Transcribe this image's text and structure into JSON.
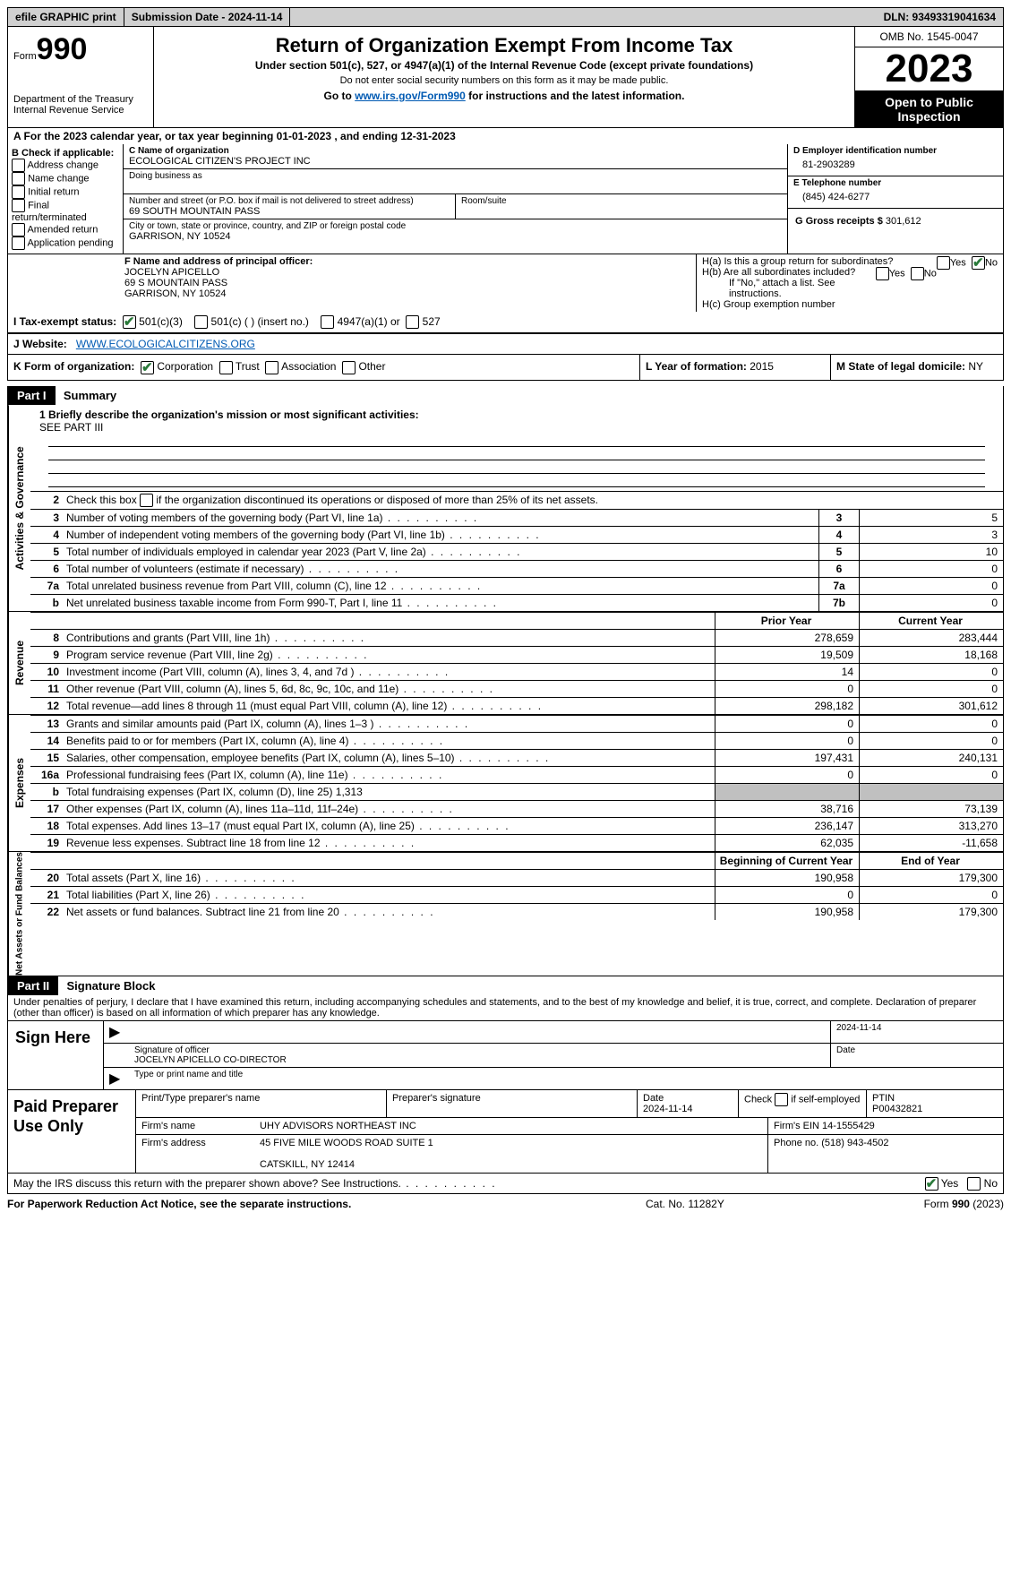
{
  "topbar": {
    "efile": "efile GRAPHIC print",
    "submission": "Submission Date - 2024-11-14",
    "dln": "DLN: 93493319041634"
  },
  "header": {
    "form_label": "Form",
    "form_number": "990",
    "dept": "Department of the Treasury",
    "irs": "Internal Revenue Service",
    "title": "Return of Organization Exempt From Income Tax",
    "subtitle": "Under section 501(c), 527, or 4947(a)(1) of the Internal Revenue Code (except private foundations)",
    "note1": "Do not enter social security numbers on this form as it may be made public.",
    "goto_prefix": "Go to ",
    "goto_link": "www.irs.gov/Form990",
    "goto_suffix": " for instructions and the latest information.",
    "omb": "OMB No. 1545-0047",
    "year": "2023",
    "open_public": "Open to Public Inspection"
  },
  "lineA": "A For the 2023 calendar year, or tax year beginning 01-01-2023    , and ending 12-31-2023",
  "B": {
    "label": "B Check if applicable:",
    "items": [
      "Address change",
      "Name change",
      "Initial return",
      "Final return/terminated",
      "Amended return",
      "Application pending"
    ]
  },
  "C": {
    "name_label": "C Name of organization",
    "name": "ECOLOGICAL CITIZEN'S PROJECT INC",
    "dba_label": "Doing business as",
    "street_label": "Number and street (or P.O. box if mail is not delivered to street address)",
    "street": "69 SOUTH MOUNTAIN PASS",
    "room_label": "Room/suite",
    "city_label": "City or town, state or province, country, and ZIP or foreign postal code",
    "city": "GARRISON, NY  10524"
  },
  "D": {
    "label": "D Employer identification number",
    "value": "81-2903289"
  },
  "E": {
    "label": "E Telephone number",
    "value": "(845) 424-6277"
  },
  "G": {
    "label": "G Gross receipts $ ",
    "value": "301,612"
  },
  "F": {
    "label": "F  Name and address of principal officer:",
    "name": "JOCELYN APICELLO",
    "addr1": "69 S MOUNTAIN PASS",
    "addr2": "GARRISON, NY  10524"
  },
  "H": {
    "a_label": "H(a)  Is this a group return for subordinates?",
    "a_no_checked": true,
    "b_label": "H(b)  Are all subordinates included?",
    "b_note": "If \"No,\" attach a list. See instructions.",
    "c_label": "H(c)  Group exemption number ",
    "yes": "Yes",
    "no": "No"
  },
  "I": {
    "label": "I    Tax-exempt status:",
    "opt1": "501(c)(3)",
    "opt2": "501(c) (  ) (insert no.)",
    "opt3": "4947(a)(1) or",
    "opt4": "527"
  },
  "J": {
    "label": "J    Website: ",
    "value": "WWW.ECOLOGICALCITIZENS.ORG"
  },
  "K": {
    "label": "K Form of organization:",
    "corp": "Corporation",
    "trust": "Trust",
    "assoc": "Association",
    "other": "Other"
  },
  "L": {
    "label": "L Year of formation: ",
    "value": "2015"
  },
  "M": {
    "label": "M State of legal domicile: ",
    "value": "NY"
  },
  "part1": {
    "header": "Part I",
    "title": "Summary"
  },
  "summary": {
    "briefly_label": "1   Briefly describe the organization's mission or most significant activities:",
    "briefly_value": "SEE PART III",
    "line2": "Check this box        if the organization discontinued its operations or disposed of more than 25% of its net assets.",
    "governance_label": "Activities & Governance",
    "gov_rows": [
      {
        "n": "3",
        "text": "Number of voting members of the governing body (Part VI, line 1a)",
        "box": "3",
        "val": "5"
      },
      {
        "n": "4",
        "text": "Number of independent voting members of the governing body (Part VI, line 1b)",
        "box": "4",
        "val": "3"
      },
      {
        "n": "5",
        "text": "Total number of individuals employed in calendar year 2023 (Part V, line 2a)",
        "box": "5",
        "val": "10"
      },
      {
        "n": "6",
        "text": "Total number of volunteers (estimate if necessary)",
        "box": "6",
        "val": "0"
      },
      {
        "n": "7a",
        "text": "Total unrelated business revenue from Part VIII, column (C), line 12",
        "box": "7a",
        "val": "0"
      },
      {
        "n": "b",
        "text": "Net unrelated business taxable income from Form 990-T, Part I, line 11",
        "box": "7b",
        "val": "0"
      }
    ],
    "prior_year": "Prior Year",
    "current_year": "Current Year",
    "revenue_label": "Revenue",
    "rev_rows": [
      {
        "n": "8",
        "text": "Contributions and grants (Part VIII, line 1h)",
        "prior": "278,659",
        "cur": "283,444"
      },
      {
        "n": "9",
        "text": "Program service revenue (Part VIII, line 2g)",
        "prior": "19,509",
        "cur": "18,168"
      },
      {
        "n": "10",
        "text": "Investment income (Part VIII, column (A), lines 3, 4, and 7d )",
        "prior": "14",
        "cur": "0"
      },
      {
        "n": "11",
        "text": "Other revenue (Part VIII, column (A), lines 5, 6d, 8c, 9c, 10c, and 11e)",
        "prior": "0",
        "cur": "0"
      },
      {
        "n": "12",
        "text": "Total revenue—add lines 8 through 11 (must equal Part VIII, column (A), line 12)",
        "prior": "298,182",
        "cur": "301,612"
      }
    ],
    "expenses_label": "Expenses",
    "exp_rows": [
      {
        "n": "13",
        "text": "Grants and similar amounts paid (Part IX, column (A), lines 1–3 )",
        "prior": "0",
        "cur": "0"
      },
      {
        "n": "14",
        "text": "Benefits paid to or for members (Part IX, column (A), line 4)",
        "prior": "0",
        "cur": "0"
      },
      {
        "n": "15",
        "text": "Salaries, other compensation, employee benefits (Part IX, column (A), lines 5–10)",
        "prior": "197,431",
        "cur": "240,131"
      },
      {
        "n": "16a",
        "text": "Professional fundraising fees (Part IX, column (A), line 11e)",
        "prior": "0",
        "cur": "0"
      },
      {
        "n": "b",
        "text": "Total fundraising expenses (Part IX, column (D), line 25) 1,313",
        "shaded": true
      },
      {
        "n": "17",
        "text": "Other expenses (Part IX, column (A), lines 11a–11d, 11f–24e)",
        "prior": "38,716",
        "cur": "73,139"
      },
      {
        "n": "18",
        "text": "Total expenses. Add lines 13–17 (must equal Part IX, column (A), line 25)",
        "prior": "236,147",
        "cur": "313,270"
      },
      {
        "n": "19",
        "text": "Revenue less expenses. Subtract line 18 from line 12",
        "prior": "62,035",
        "cur": "-11,658"
      }
    ],
    "netassets_label": "Net Assets or Fund Balances",
    "begin_label": "Beginning of Current Year",
    "end_label": "End of Year",
    "na_rows": [
      {
        "n": "20",
        "text": "Total assets (Part X, line 16)",
        "prior": "190,958",
        "cur": "179,300"
      },
      {
        "n": "21",
        "text": "Total liabilities (Part X, line 26)",
        "prior": "0",
        "cur": "0"
      },
      {
        "n": "22",
        "text": "Net assets or fund balances. Subtract line 21 from line 20",
        "prior": "190,958",
        "cur": "179,300"
      }
    ]
  },
  "part2": {
    "header": "Part II",
    "title": "Signature Block"
  },
  "sig": {
    "text": "Under penalties of perjury, I declare that I have examined this return, including accompanying schedules and statements, and to the best of my knowledge and belief, it is true, correct, and complete. Declaration of preparer (other than officer) is based on all information of which preparer has any knowledge.",
    "sign_here": "Sign Here",
    "sig_officer_label": "Signature of officer",
    "sig_date": "2024-11-14",
    "date_label": "Date",
    "officer_name": "JOCELYN APICELLO  CO-DIRECTOR",
    "type_name_label": "Type or print name and title"
  },
  "preparer": {
    "label": "Paid Preparer Use Only",
    "col_headers": {
      "name": "Print/Type preparer's name",
      "sig": "Preparer's signature",
      "date_label": "Date",
      "date": "2024-11-14",
      "check": "Check         if self-employed",
      "ptin_label": "PTIN",
      "ptin": "P00432821"
    },
    "firm_name_label": "Firm's name     ",
    "firm_name": "UHY ADVISORS NORTHEAST INC",
    "firm_ein_label": "Firm's EIN  ",
    "firm_ein": "14-1555429",
    "firm_addr_label": "Firm's address ",
    "firm_addr1": "45 FIVE MILE WOODS ROAD SUITE 1",
    "firm_addr2": "CATSKILL, NY  12414",
    "phone_label": "Phone no. ",
    "phone": "(518) 943-4502"
  },
  "discuss": {
    "text": "May the IRS discuss this return with the preparer shown above? See Instructions.",
    "yes": "Yes",
    "no": "No"
  },
  "footer": {
    "left": "For Paperwork Reduction Act Notice, see the separate instructions.",
    "mid": "Cat. No. 11282Y",
    "right_form": "Form ",
    "right_990": "990",
    "right_year": " (2023)"
  }
}
